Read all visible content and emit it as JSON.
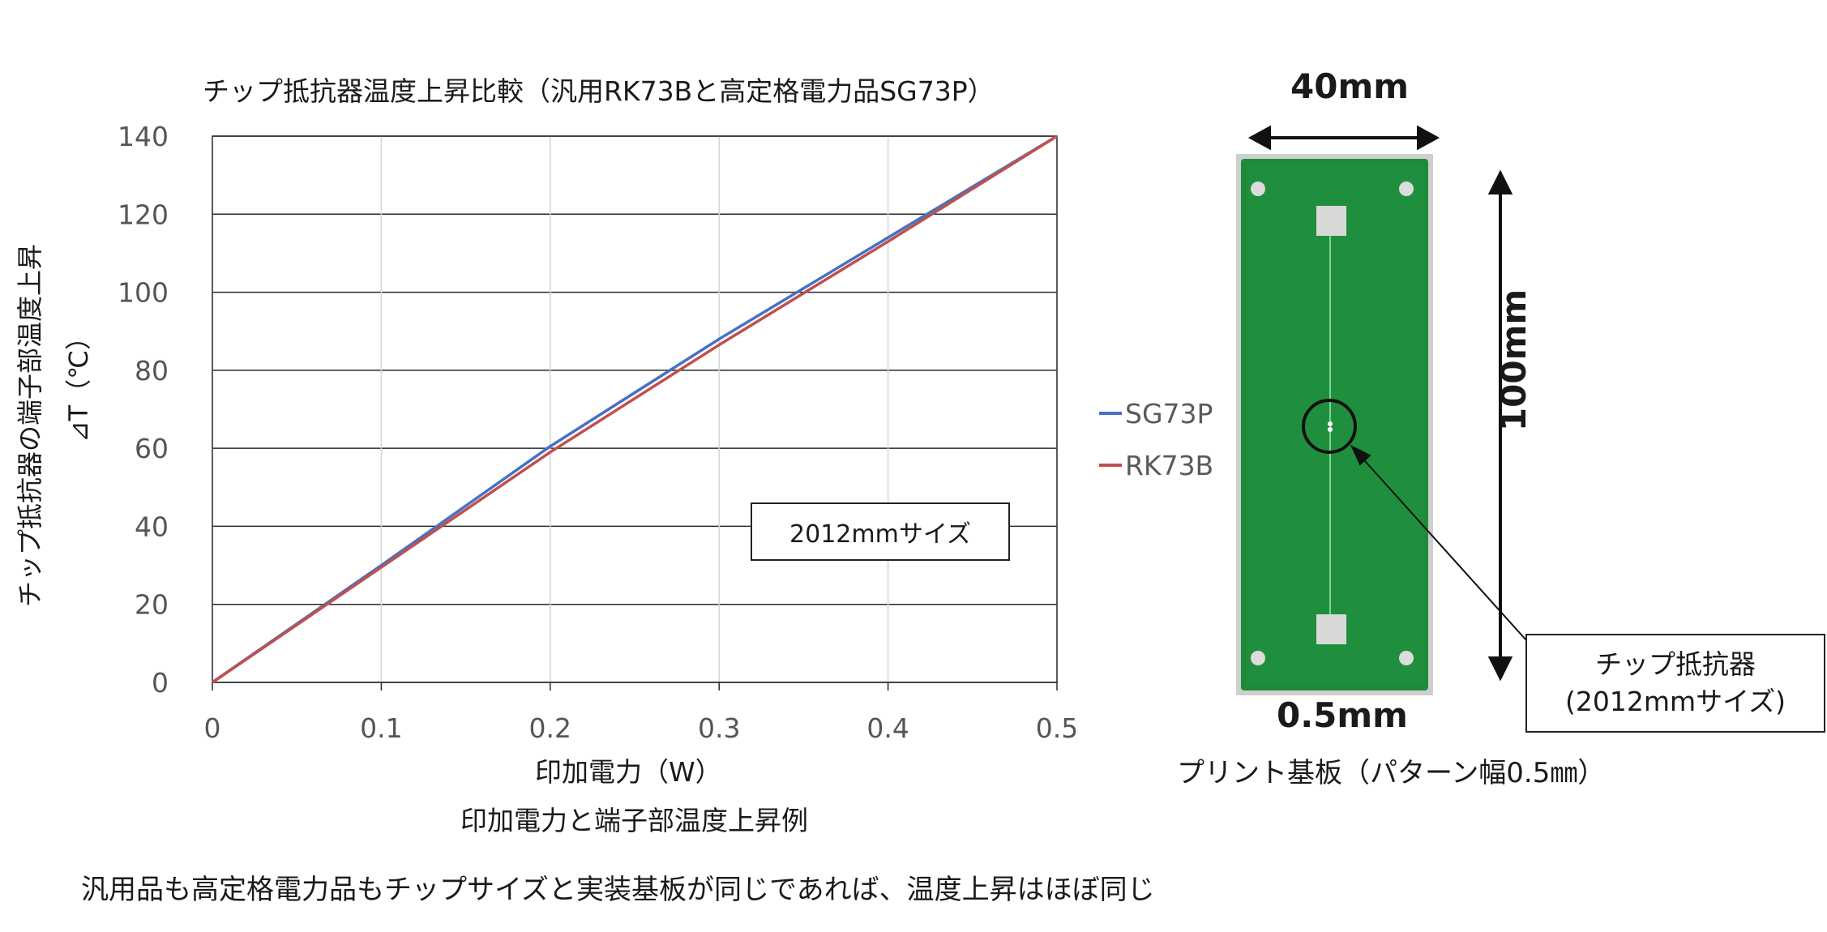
{
  "chart_data": {
    "type": "line",
    "title": "チップ抵抗器温度上昇比較（汎用RK73Bと高定格電力品SG73P）",
    "xlabel": "印加電力（W）",
    "ylabel_line1": "チップ抵抗器の端子部温度上昇",
    "ylabel_line2": "⊿T（℃）",
    "xlim": [
      0,
      0.5
    ],
    "ylim": [
      0,
      140
    ],
    "x_ticks": [
      "0",
      "0.1",
      "0.2",
      "0.3",
      "0.4",
      "0.5"
    ],
    "y_ticks": [
      "0",
      "20",
      "40",
      "60",
      "80",
      "100",
      "120",
      "140"
    ],
    "grid": true,
    "legend_position": "right",
    "annotation": "2012mmサイズ",
    "series": [
      {
        "name": "SG73P",
        "color": "#4472c4",
        "x": [
          0,
          0.1,
          0.2,
          0.3,
          0.4,
          0.5
        ],
        "y": [
          0,
          30,
          60.5,
          88,
          114,
          140
        ]
      },
      {
        "name": "RK73B",
        "color": "#c0504d",
        "x": [
          0,
          0.1,
          0.2,
          0.3,
          0.4,
          0.5
        ],
        "y": [
          0,
          29.5,
          59,
          86.5,
          113,
          140
        ]
      }
    ]
  },
  "caption": "印加電力と端子部温度上昇例",
  "conclusion": "汎用品も高定格電力品もチップサイズと実装基板が同じであれば、温度上昇はほぼ同じ",
  "board": {
    "width_label": "40mm",
    "height_label": "100mm",
    "pattern_label": "0.5mm",
    "chip_label_line1": "チップ抵抗器",
    "chip_label_line2": "(2012mmサイズ)",
    "caption": "プリント基板（パターン幅0.5㎜）",
    "board_color": "#1e8a3a"
  }
}
